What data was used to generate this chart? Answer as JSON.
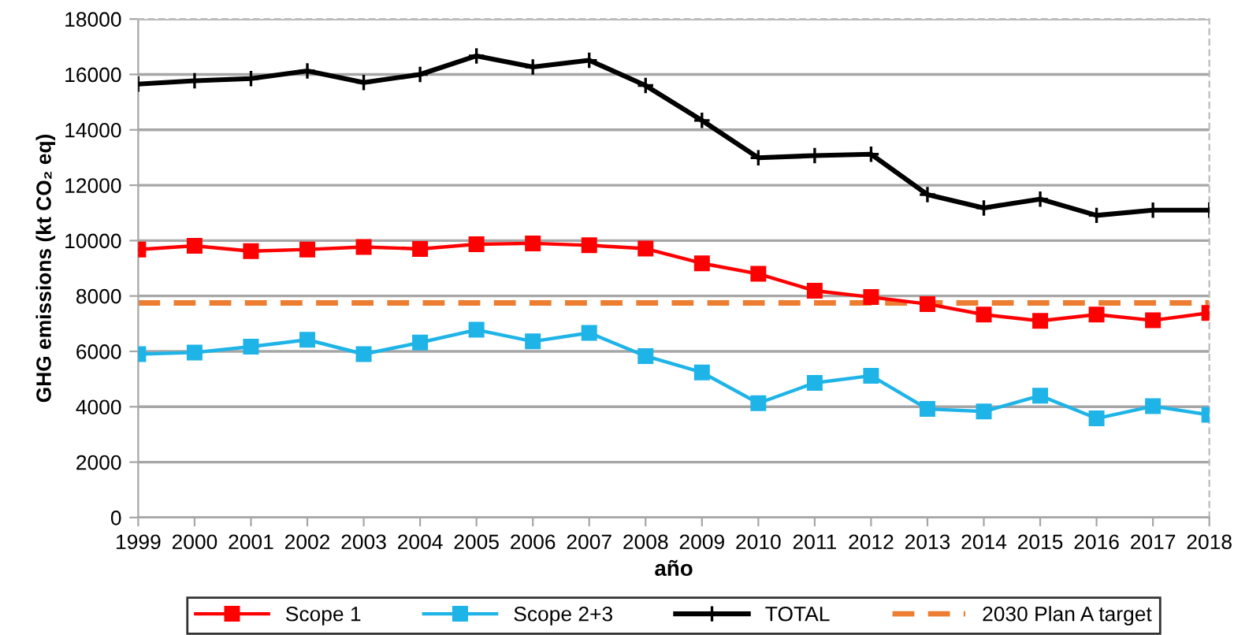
{
  "chart_data": {
    "type": "line",
    "xlabel": "año",
    "ylabel": "GHG emissions (kt CO₂ eq)",
    "categories": [
      "1999",
      "2000",
      "2001",
      "2002",
      "2003",
      "2004",
      "2005",
      "2006",
      "2007",
      "2008",
      "2009",
      "2010",
      "2011",
      "2012",
      "2013",
      "2014",
      "2015",
      "2016",
      "2017",
      "2018"
    ],
    "series": [
      {
        "name": "Scope 1",
        "color": "#ff0000",
        "marker": "square",
        "values": [
          9680,
          9810,
          9620,
          9680,
          9770,
          9700,
          9870,
          9900,
          9830,
          9710,
          9180,
          8800,
          8190,
          7960,
          7710,
          7330,
          7100,
          7330,
          7120,
          7390
        ]
      },
      {
        "name": "Scope 2+3",
        "color": "#1fb4e8",
        "marker": "square",
        "values": [
          5900,
          5960,
          6170,
          6420,
          5900,
          6320,
          6780,
          6360,
          6670,
          5830,
          5240,
          4130,
          4860,
          5120,
          3920,
          3830,
          4400,
          3580,
          4020,
          3710
        ]
      },
      {
        "name": "TOTAL",
        "color": "#000000",
        "marker": "cross",
        "values": [
          15650,
          15770,
          15850,
          16130,
          15710,
          16000,
          16670,
          16270,
          16510,
          15600,
          14340,
          12990,
          13070,
          13120,
          11660,
          11180,
          11500,
          10910,
          11100,
          11100
        ]
      }
    ],
    "ref_lines": [
      {
        "axis": "y",
        "value": 7750,
        "label": "2030 Plan A target",
        "color": "#ed7d31",
        "line_style": "dashed"
      }
    ],
    "ylim": [
      0,
      18000
    ],
    "yticks": [
      0,
      2000,
      4000,
      6000,
      8000,
      10000,
      12000,
      14000,
      16000,
      18000
    ],
    "grid": "y",
    "legend": "bottom",
    "line_style": "solid"
  }
}
